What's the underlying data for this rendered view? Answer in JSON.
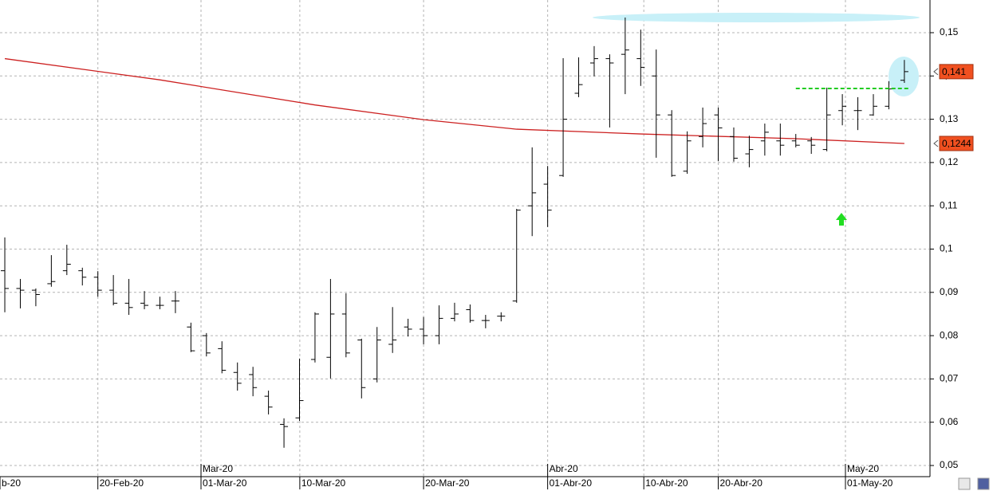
{
  "chart_data": {
    "type": "ohlc",
    "xlim": [
      -0.31,
      59.6
    ],
    "ylim": [
      0.05,
      0.15755
    ],
    "grid": true,
    "yticks": [
      {
        "value": 0.05,
        "label": "0,05"
      },
      {
        "value": 0.06,
        "label": "0,06"
      },
      {
        "value": 0.07,
        "label": "0,07"
      },
      {
        "value": 0.08,
        "label": "0,08"
      },
      {
        "value": 0.09,
        "label": "0,09"
      },
      {
        "value": 0.1,
        "label": "0,1"
      },
      {
        "value": 0.11,
        "label": "0,11"
      },
      {
        "value": 0.12,
        "label": "0,12"
      },
      {
        "value": 0.13,
        "label": "0,13"
      },
      {
        "value": 0.14,
        "label": "0,14"
      },
      {
        "value": 0.15,
        "label": "0,15"
      }
    ],
    "xticks": [
      {
        "value": -0.31,
        "label": "b-20"
      },
      {
        "value": 6,
        "label": "20-Feb-20"
      },
      {
        "value": 12.65,
        "label": "01-Mar-20"
      },
      {
        "value": 19.02,
        "label": "10-Mar-20"
      },
      {
        "value": 27,
        "label": "20-Mar-20"
      },
      {
        "value": 35,
        "label": "01-Abr-20"
      },
      {
        "value": 41.2,
        "label": "10-Abr-20"
      },
      {
        "value": 46,
        "label": "20-Abr-20"
      },
      {
        "value": 54.2,
        "label": "01-May-20"
      }
    ],
    "month_ticks": [
      {
        "value": 12.65,
        "label": "Mar-20"
      },
      {
        "value": 35,
        "label": "Abr-20"
      },
      {
        "value": 54.2,
        "label": "May-20"
      }
    ],
    "color": "#000000",
    "open": [
      0.095,
      0.0909,
      0.0905,
      0.092,
      0.095,
      0.095,
      0.0935,
      0.0905,
      0.0875,
      0.0875,
      0.087,
      0.088,
      0.082,
      0.08,
      0.077,
      0.0715,
      0.071,
      0.066,
      0.0595,
      0.061,
      0.0745,
      0.075,
      0.085,
      0.079,
      0.07,
      0.078,
      0.082,
      0.0815,
      0.08,
      0.084,
      0.086,
      0.0835,
      0.0845,
      0.088,
      0.11,
      0.115,
      0.117,
      0.136,
      0.143,
      0.144,
      0.145,
      0.144,
      0.14,
      0.131,
      0.118,
      0.126,
      0.131,
      0.126,
      0.122,
      0.125,
      0.125,
      0.125,
      0.125,
      0.123,
      0.132,
      0.132,
      0.131,
      0.133,
      0.139
    ],
    "high": [
      0.1027,
      0.0931,
      0.0909,
      0.0986,
      0.101,
      0.0957,
      0.0949,
      0.094,
      0.0931,
      0.0903,
      0.089,
      0.0903,
      0.083,
      0.0806,
      0.0787,
      0.0738,
      0.0728,
      0.0673,
      0.0609,
      0.0747,
      0.0854,
      0.0931,
      0.0898,
      0.0793,
      0.082,
      0.0866,
      0.0839,
      0.0843,
      0.087,
      0.0876,
      0.0872,
      0.0848,
      0.0854,
      0.1093,
      0.1235,
      0.1192,
      0.1441,
      0.1443,
      0.1469,
      0.145,
      0.1535,
      0.1507,
      0.1461,
      0.1321,
      0.1272,
      0.1327,
      0.1327,
      0.1281,
      0.1262,
      0.129,
      0.129,
      0.1266,
      0.1259,
      0.1373,
      0.1358,
      0.1351,
      0.1358,
      0.1388,
      0.1437
    ],
    "low": [
      0.0854,
      0.0863,
      0.0868,
      0.0913,
      0.094,
      0.0916,
      0.089,
      0.087,
      0.0848,
      0.0861,
      0.0861,
      0.0852,
      0.0762,
      0.0752,
      0.0713,
      0.0673,
      0.066,
      0.0618,
      0.0541,
      0.0603,
      0.0738,
      0.0701,
      0.075,
      0.0655,
      0.0692,
      0.076,
      0.0798,
      0.078,
      0.078,
      0.0833,
      0.083,
      0.0817,
      0.0833,
      0.0876,
      0.103,
      0.1051,
      0.1167,
      0.1351,
      0.1399,
      0.1281,
      0.1358,
      0.1377,
      0.1211,
      0.1167,
      0.1174,
      0.1235,
      0.1203,
      0.1202,
      0.1189,
      0.1216,
      0.1216,
      0.1235,
      0.122,
      0.1226,
      0.1286,
      0.1275,
      0.1308,
      0.1323,
      0.1384
    ],
    "close": [
      0.0909,
      0.0905,
      0.0895,
      0.0925,
      0.0965,
      0.0935,
      0.0905,
      0.0875,
      0.0865,
      0.087,
      0.087,
      0.088,
      0.0765,
      0.076,
      0.072,
      0.069,
      0.068,
      0.0635,
      0.059,
      0.065,
      0.085,
      0.085,
      0.076,
      0.068,
      0.079,
      0.079,
      0.0815,
      0.08,
      0.084,
      0.085,
      0.0835,
      0.0835,
      0.0845,
      0.109,
      0.113,
      0.109,
      0.13,
      0.138,
      0.144,
      0.143,
      0.146,
      0.142,
      0.131,
      0.117,
      0.125,
      0.129,
      0.128,
      0.121,
      0.123,
      0.127,
      0.124,
      0.124,
      0.124,
      0.131,
      0.133,
      0.132,
      0.133,
      0.137,
      0.141
    ],
    "moving_average": {
      "color": "#cc2020",
      "x": [
        0,
        10,
        20,
        27,
        33,
        41,
        51,
        58
      ],
      "values": [
        0.144,
        0.1391,
        0.1333,
        0.1299,
        0.1277,
        0.1266,
        0.1255,
        0.1244
      ]
    },
    "level_line": {
      "color": "#22cc22",
      "value": 0.1371,
      "x": [
        51,
        58.3
      ]
    },
    "last_labels": [
      {
        "value": 0.141,
        "label": "0,141"
      },
      {
        "value": 0.1244,
        "label": "0,1244"
      }
    ]
  }
}
